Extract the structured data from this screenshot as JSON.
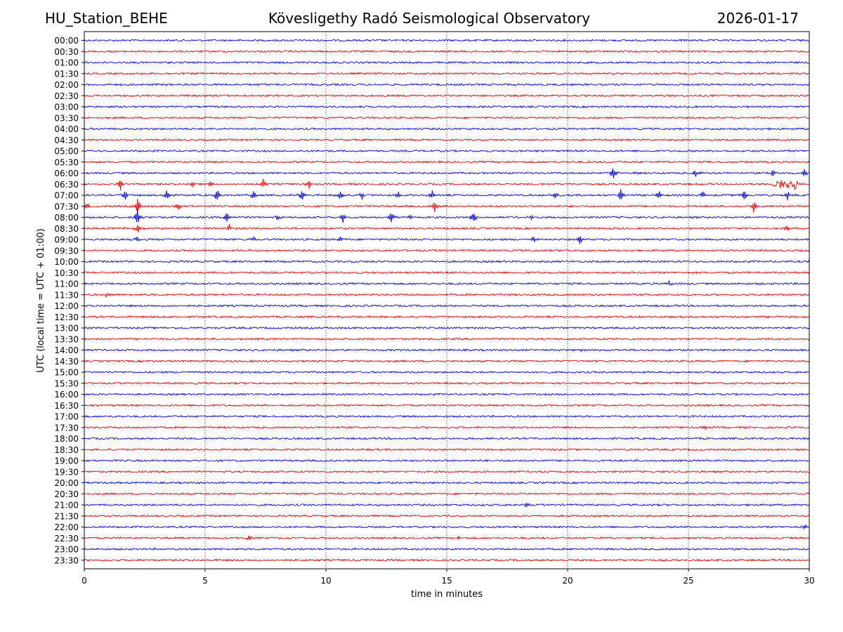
{
  "header": {
    "station": "HU_Station_BEHE",
    "observatory": "Kövesligethy Radó Seismological Observatory",
    "date": "2026-01-17"
  },
  "chart_data": {
    "type": "line",
    "title": "Kövesligethy Radó Seismological Observatory",
    "xlabel": "time in minutes",
    "ylabel": "UTC (local time = UTC + 01:00)",
    "xlim": [
      0,
      30
    ],
    "x_ticks": [
      "0",
      "5",
      "10",
      "15",
      "20",
      "25",
      "30"
    ],
    "grid": "vertical dotted at 5-minute intervals",
    "row_interval_minutes": 30,
    "row_labels": [
      "00:00",
      "00:30",
      "01:00",
      "01:30",
      "02:00",
      "02:30",
      "03:00",
      "03:30",
      "04:00",
      "04:30",
      "05:00",
      "05:30",
      "06:00",
      "06:30",
      "07:00",
      "07:30",
      "08:00",
      "08:30",
      "09:00",
      "09:30",
      "10:00",
      "10:30",
      "11:00",
      "11:30",
      "12:00",
      "12:30",
      "13:00",
      "13:30",
      "14:00",
      "14:30",
      "15:00",
      "15:30",
      "16:00",
      "16:30",
      "17:00",
      "17:30",
      "18:00",
      "18:30",
      "19:00",
      "19:30",
      "20:00",
      "20:30",
      "21:00",
      "21:30",
      "22:00",
      "22:30",
      "23:00",
      "23:30"
    ],
    "series_colors": [
      "#0000ff",
      "#ff0000"
    ],
    "events": [
      {
        "row": "00:00",
        "minute": 10.0,
        "amplitude": 0.5,
        "kind": "gap"
      },
      {
        "row": "06:00",
        "minute": 21.9,
        "amplitude": 12
      },
      {
        "row": "06:00",
        "minute": 22.9,
        "amplitude": 3
      },
      {
        "row": "06:00",
        "minute": 25.3,
        "amplitude": 6
      },
      {
        "row": "06:00",
        "minute": 28.5,
        "amplitude": 6
      },
      {
        "row": "06:00",
        "minute": 29.8,
        "amplitude": 6
      },
      {
        "row": "06:30",
        "minute": 1.5,
        "amplitude": 9
      },
      {
        "row": "06:30",
        "minute": 4.5,
        "amplitude": 6
      },
      {
        "row": "06:30",
        "minute": 5.2,
        "amplitude": 6
      },
      {
        "row": "06:30",
        "minute": 7.4,
        "amplitude": 9
      },
      {
        "row": "06:30",
        "minute": 9.3,
        "amplitude": 8
      },
      {
        "row": "06:30",
        "minute": 29.0,
        "amplitude": 8,
        "kind": "burst",
        "duration": 1.0
      },
      {
        "row": "07:00",
        "minute": 1.7,
        "amplitude": 9
      },
      {
        "row": "07:00",
        "minute": 3.4,
        "amplitude": 8
      },
      {
        "row": "07:00",
        "minute": 5.5,
        "amplitude": 10
      },
      {
        "row": "07:00",
        "minute": 7.0,
        "amplitude": 8
      },
      {
        "row": "07:00",
        "minute": 9.0,
        "amplitude": 8
      },
      {
        "row": "07:00",
        "minute": 10.6,
        "amplitude": 9
      },
      {
        "row": "07:00",
        "minute": 11.5,
        "amplitude": 7
      },
      {
        "row": "07:00",
        "minute": 13.0,
        "amplitude": 5
      },
      {
        "row": "07:00",
        "minute": 14.4,
        "amplitude": 8
      },
      {
        "row": "07:00",
        "minute": 19.5,
        "amplitude": 6
      },
      {
        "row": "07:00",
        "minute": 22.2,
        "amplitude": 9
      },
      {
        "row": "07:00",
        "minute": 23.8,
        "amplitude": 7
      },
      {
        "row": "07:00",
        "minute": 25.6,
        "amplitude": 6
      },
      {
        "row": "07:00",
        "minute": 27.3,
        "amplitude": 10
      },
      {
        "row": "07:00",
        "minute": 29.1,
        "amplitude": 7
      },
      {
        "row": "07:30",
        "minute": 0.1,
        "amplitude": 5
      },
      {
        "row": "07:30",
        "minute": 2.2,
        "amplitude": 14
      },
      {
        "row": "07:30",
        "minute": 3.9,
        "amplitude": 8
      },
      {
        "row": "07:30",
        "minute": 14.5,
        "amplitude": 10
      },
      {
        "row": "07:30",
        "minute": 27.7,
        "amplitude": 9
      },
      {
        "row": "08:00",
        "minute": 2.2,
        "amplitude": 12
      },
      {
        "row": "08:00",
        "minute": 5.9,
        "amplitude": 9
      },
      {
        "row": "08:00",
        "minute": 8.0,
        "amplitude": 5
      },
      {
        "row": "08:00",
        "minute": 10.7,
        "amplitude": 12
      },
      {
        "row": "08:00",
        "minute": 12.7,
        "amplitude": 10
      },
      {
        "row": "08:00",
        "minute": 13.5,
        "amplitude": 5
      },
      {
        "row": "08:00",
        "minute": 16.1,
        "amplitude": 9
      },
      {
        "row": "08:00",
        "minute": 18.5,
        "amplitude": 4
      },
      {
        "row": "08:30",
        "minute": 2.2,
        "amplitude": 8
      },
      {
        "row": "08:30",
        "minute": 6.0,
        "amplitude": 5
      },
      {
        "row": "08:30",
        "minute": 29.1,
        "amplitude": 5
      },
      {
        "row": "09:00",
        "minute": 2.2,
        "amplitude": 5
      },
      {
        "row": "09:00",
        "minute": 7.0,
        "amplitude": 4
      },
      {
        "row": "09:00",
        "minute": 10.6,
        "amplitude": 4
      },
      {
        "row": "09:00",
        "minute": 18.6,
        "amplitude": 7
      },
      {
        "row": "09:00",
        "minute": 20.5,
        "amplitude": 8
      },
      {
        "row": "11:00",
        "minute": 24.2,
        "amplitude": 4
      },
      {
        "row": "11:30",
        "minute": 0.9,
        "amplitude": 4
      },
      {
        "row": "14:00",
        "minute": 20.6,
        "amplitude": 3
      },
      {
        "row": "17:30",
        "minute": 25.7,
        "amplitude": 3
      },
      {
        "row": "21:00",
        "minute": 18.3,
        "amplitude": 4
      },
      {
        "row": "22:00",
        "minute": 29.8,
        "amplitude": 4
      },
      {
        "row": "22:30",
        "minute": 6.8,
        "amplitude": 4
      },
      {
        "row": "22:30",
        "minute": 15.5,
        "amplitude": 3
      }
    ]
  }
}
